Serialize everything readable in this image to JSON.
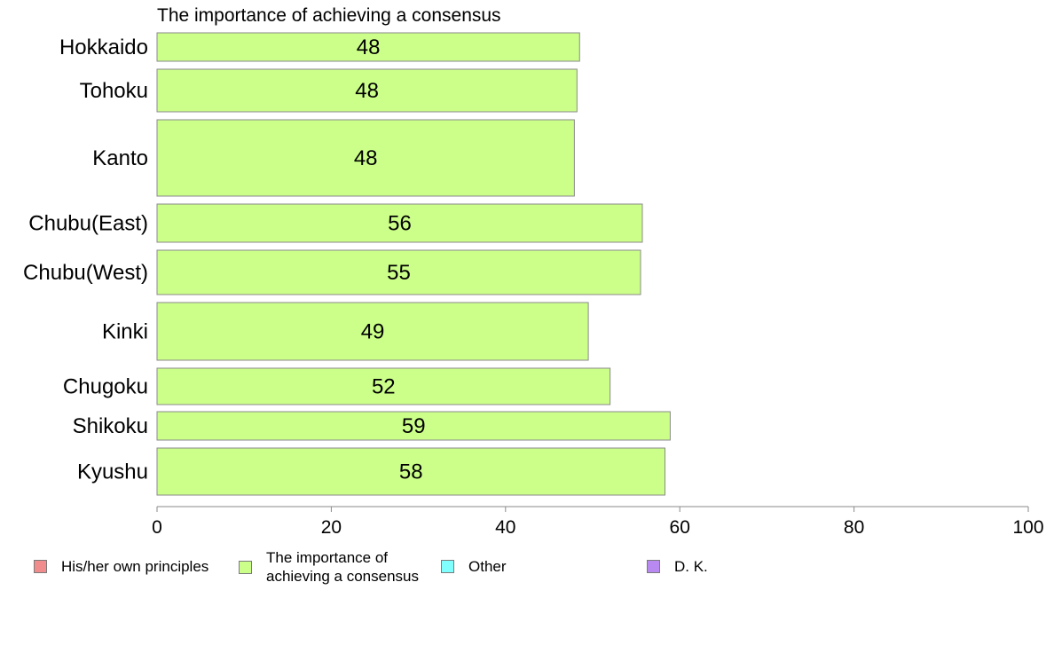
{
  "chart_data": {
    "type": "bar",
    "orientation": "horizontal",
    "title": "The importance of achieving a consensus",
    "categories": [
      "Hokkaido",
      "Tohoku",
      "Kanto",
      "Chubu(East)",
      "Chubu(West)",
      "Kinki",
      "Chugoku",
      "Shikoku",
      "Kyushu"
    ],
    "series": [
      {
        "name": "The importance of achieving a consensus",
        "values": [
          48.5,
          48.2,
          47.9,
          55.7,
          55.5,
          49.5,
          52.0,
          58.9,
          58.3
        ]
      }
    ],
    "data_labels": [
      "48",
      "48",
      "48",
      "56",
      "55",
      "49",
      "52",
      "59",
      "58"
    ],
    "xlim": [
      0,
      100
    ],
    "xticks": [
      0,
      20,
      40,
      60,
      80,
      100
    ],
    "xlabel": "",
    "ylabel": "",
    "grid": false,
    "legend_position": "bottom",
    "legend": [
      {
        "label": "His/her own principles",
        "color": "#f08c8c"
      },
      {
        "label": "The importance of achieving a consensus",
        "color": "#ccff8a"
      },
      {
        "label": "Other",
        "color": "#80ffff"
      },
      {
        "label": "D. K.",
        "color": "#b889f0"
      }
    ],
    "bar_color": "#ccff8a",
    "bar_border_color": "#8a8a8a"
  }
}
